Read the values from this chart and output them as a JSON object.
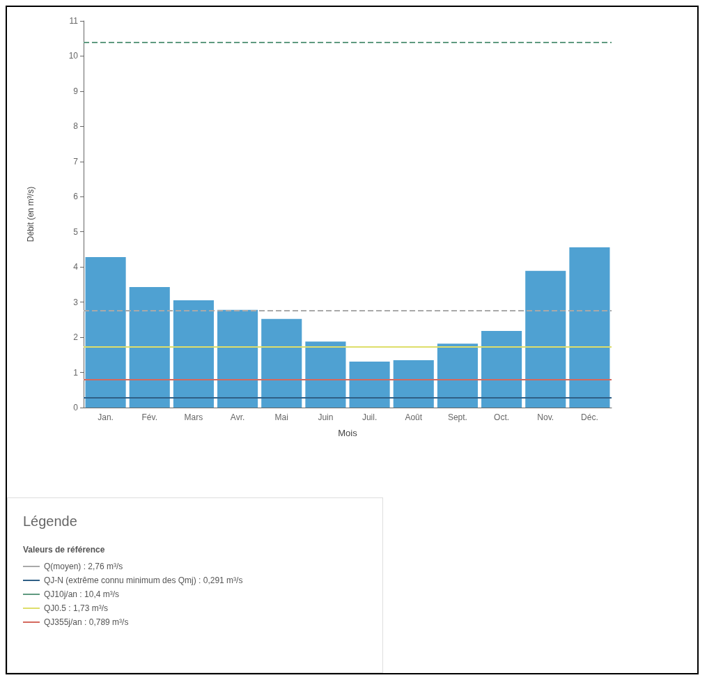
{
  "chart_data": {
    "type": "bar",
    "xlabel": "Mois",
    "ylabel": "Débit (en m³/s)",
    "legend_title": "Légende",
    "annotations": [
      "Valeurs de référence"
    ],
    "categories": [
      "Jan.",
      "Fév.",
      "Mars",
      "Avr.",
      "Mai",
      "Juin",
      "Juil.",
      "Août",
      "Sept.",
      "Oct.",
      "Nov.",
      "Déc."
    ],
    "values": [
      4.28,
      3.43,
      3.05,
      2.78,
      2.52,
      1.88,
      1.31,
      1.35,
      1.82,
      2.18,
      3.89,
      4.56
    ],
    "color": "#4fa1d2",
    "ylim": [
      0,
      11
    ],
    "yticks": [
      0,
      1,
      2,
      3,
      4,
      5,
      6,
      7,
      8,
      9,
      10,
      11
    ],
    "grid": false,
    "legend": "bottom left",
    "ref_lines": [
      {
        "axis": "y",
        "value": 2.76,
        "label": "Q(moyen) : 2,76 m³/s",
        "color": "#a9a9a9",
        "line_style": "dashed"
      },
      {
        "axis": "y",
        "value": 0.291,
        "label": "QJ-N (extrême connu minimum des Qmj) : 0,291 m³/s",
        "color": "#2f5f86",
        "line_style": "solid"
      },
      {
        "axis": "y",
        "value": 10.4,
        "label": "QJ10j/an : 10,4 m³/s",
        "color": "#5f9a80",
        "line_style": "dashed"
      },
      {
        "axis": "y",
        "value": 1.73,
        "label": "QJ0.5 : 1,73 m³/s",
        "color": "#dede6a",
        "line_style": "solid"
      },
      {
        "axis": "y",
        "value": 0.789,
        "label": "QJ355j/an : 0,789 m³/s",
        "color": "#d4695e",
        "line_style": "solid"
      }
    ]
  }
}
